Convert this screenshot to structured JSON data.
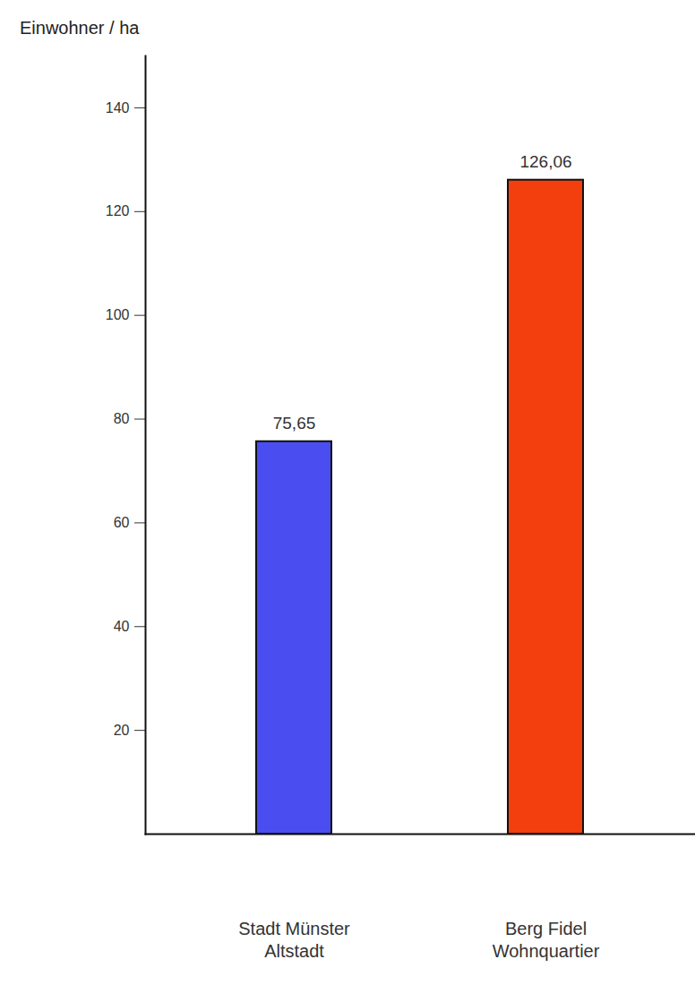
{
  "chart_data": {
    "type": "bar",
    "y_label": "Einwohner / ha",
    "categories": [
      "Stadt Münster\nAltstadt",
      "Berg Fidel\nWohnquartier"
    ],
    "values": [
      75.65,
      126.06
    ],
    "value_labels": [
      "75,65",
      "126,06"
    ],
    "data_labels": true,
    "colors": [
      "#4a4ef0",
      "#f23f0d"
    ],
    "ylim": [
      0,
      150
    ],
    "yticks": [
      20,
      40,
      60,
      80,
      100,
      120,
      140
    ],
    "grid": false
  }
}
